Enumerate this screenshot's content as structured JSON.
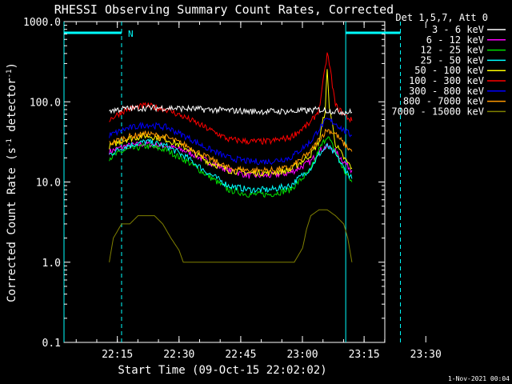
{
  "chart_data": {
    "type": "line",
    "title": "RHESSI Observing Summary Count Rates, Corrected",
    "xlabel": "Start Time (09-Oct-15 22:02:02)",
    "ylabel_main": "Corrected Count Rate (s",
    "ylabel_exp1": "-1",
    "ylabel_mid": " detector",
    "ylabel_exp2": "-1",
    "ylabel_end": ")",
    "y_scale": "log",
    "ylim": [
      0.1,
      1000
    ],
    "xlim_minutes": [
      0,
      78
    ],
    "x_ticks": [
      {
        "label": "22:15",
        "minute": 12.97
      },
      {
        "label": "22:30",
        "minute": 27.97
      },
      {
        "label": "22:45",
        "minute": 42.97
      },
      {
        "label": "23:00",
        "minute": 57.97
      },
      {
        "label": "23:15",
        "minute": 72.97
      },
      {
        "label": "23:30",
        "minute": 87.97
      }
    ],
    "y_ticks": [
      {
        "label": "1000.0",
        "value": 1000
      },
      {
        "label": "100.0",
        "value": 100
      },
      {
        "label": "10.0",
        "value": 10
      },
      {
        "label": "1.0",
        "value": 1
      },
      {
        "label": "0.1",
        "value": 0.1
      }
    ],
    "legend_title": "Det 1,5,7, Att 0",
    "legend_position": "top-right",
    "night_marker": "N",
    "series": [
      {
        "name": "3 - 6 keV",
        "color": "#ffffff",
        "x": [
          11,
          15,
          20,
          25,
          30,
          35,
          40,
          45,
          50,
          55,
          60,
          62,
          64,
          66,
          68,
          70
        ],
        "y": [
          78,
          82,
          84,
          84,
          82,
          80,
          78,
          76,
          76,
          76,
          78,
          80,
          78,
          76,
          75,
          74
        ]
      },
      {
        "name": "6 - 12 keV",
        "color": "#ff00ff",
        "x": [
          11,
          15,
          20,
          25,
          30,
          35,
          40,
          45,
          50,
          55,
          60,
          62,
          64,
          66,
          68,
          70
        ],
        "y": [
          24,
          28,
          30,
          28,
          24,
          18,
          14,
          12,
          12,
          13,
          18,
          24,
          28,
          24,
          18,
          14
        ]
      },
      {
        "name": "12 - 25 keV",
        "color": "#00e000",
        "x": [
          11,
          15,
          20,
          25,
          30,
          35,
          40,
          45,
          50,
          55,
          60,
          62,
          64,
          66,
          68,
          70
        ],
        "y": [
          20,
          25,
          28,
          25,
          18,
          12,
          8,
          7,
          7,
          8,
          14,
          25,
          38,
          24,
          14,
          10
        ]
      },
      {
        "name": "25 - 50 keV",
        "color": "#00ffff",
        "x": [
          11,
          15,
          20,
          25,
          30,
          35,
          40,
          45,
          50,
          55,
          60,
          62,
          64,
          66,
          68,
          70
        ],
        "y": [
          22,
          28,
          32,
          28,
          20,
          13,
          9,
          8,
          8,
          9,
          15,
          22,
          28,
          22,
          15,
          11
        ]
      },
      {
        "name": "50 - 100 keV",
        "color": "#ffff00",
        "x": [
          11,
          15,
          20,
          25,
          30,
          35,
          40,
          45,
          50,
          55,
          60,
          62,
          63.5,
          64,
          64.5,
          66,
          68,
          70
        ],
        "y": [
          28,
          34,
          38,
          34,
          26,
          18,
          14,
          13,
          13,
          14,
          22,
          32,
          80,
          240,
          90,
          30,
          20,
          15
        ]
      },
      {
        "name": "100 - 300 keV",
        "color": "#ff0000",
        "x": [
          11,
          15,
          20,
          25,
          30,
          35,
          40,
          45,
          50,
          55,
          60,
          62,
          63.5,
          64,
          64.5,
          66,
          68,
          70
        ],
        "y": [
          60,
          80,
          90,
          80,
          62,
          46,
          34,
          32,
          32,
          36,
          55,
          80,
          260,
          400,
          300,
          90,
          70,
          58
        ]
      },
      {
        "name": "300 - 800 keV",
        "color": "#0000ff",
        "x": [
          11,
          15,
          20,
          25,
          30,
          35,
          40,
          45,
          50,
          55,
          60,
          62,
          64,
          66,
          68,
          70
        ],
        "y": [
          38,
          46,
          52,
          48,
          36,
          26,
          20,
          18,
          18,
          20,
          32,
          46,
          60,
          54,
          44,
          38
        ]
      },
      {
        "name": "800 - 7000 keV",
        "color": "#ff9900",
        "x": [
          11,
          15,
          20,
          25,
          30,
          35,
          40,
          45,
          50,
          55,
          60,
          62,
          64,
          66,
          68,
          70
        ],
        "y": [
          30,
          36,
          40,
          36,
          28,
          20,
          15,
          14,
          14,
          15,
          24,
          34,
          45,
          40,
          30,
          24
        ]
      },
      {
        "name": "7000 - 15000 keV",
        "color": "#808000",
        "x": [
          11,
          12,
          14,
          16,
          18,
          20,
          22,
          24,
          26,
          28,
          29,
          30,
          33,
          36,
          40,
          44,
          48,
          52,
          56,
          58,
          59,
          60,
          62,
          64,
          66,
          68,
          69,
          70
        ],
        "y": [
          1.0,
          2.0,
          3.0,
          3.0,
          3.8,
          3.8,
          3.8,
          3.0,
          2.0,
          1.4,
          1.0,
          1.0,
          1.0,
          1.0,
          1.0,
          1.0,
          1.0,
          1.0,
          1.0,
          1.5,
          2.6,
          3.8,
          4.5,
          4.5,
          3.8,
          3.0,
          2.0,
          1.0
        ]
      }
    ],
    "vertical_lines": [
      {
        "minute": 0,
        "style": "solid",
        "color": "#00ffff"
      },
      {
        "minute": 14,
        "style": "dashed",
        "color": "#00ffff"
      },
      {
        "minute": 68.5,
        "style": "solid",
        "color": "#00ffff"
      },
      {
        "minute": 81.8,
        "style": "dashed",
        "color": "#00ffff"
      }
    ],
    "bars": [
      {
        "x0": 0,
        "x1": 14,
        "color": "#00ffff"
      },
      {
        "x0": 68.5,
        "x1": 81.8,
        "color": "#00ffff"
      }
    ]
  },
  "footer_timestamp": "1-Nov-2021 00:04"
}
